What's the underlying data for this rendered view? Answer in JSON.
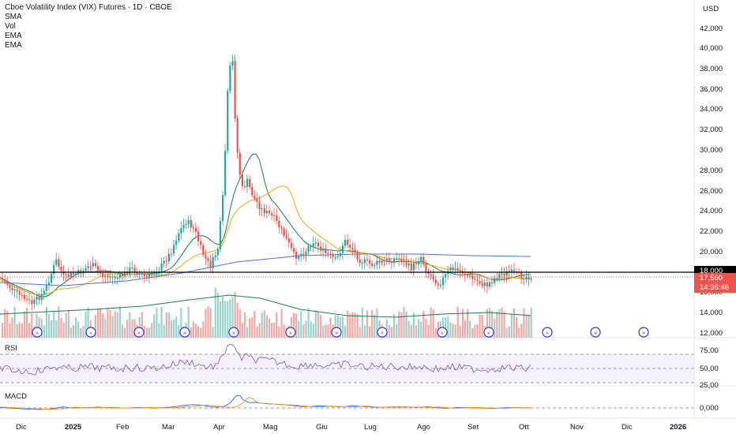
{
  "header": {
    "title": "Cboe Volatility Index (VIX) Futures · 1D · CBOE",
    "indicators": [
      "SMA",
      "Vol",
      "EMA",
      "EMA"
    ]
  },
  "price_axis": {
    "currency": "USD",
    "ticks": [
      "42,000",
      "40,000",
      "38,000",
      "36,000",
      "34,000",
      "32,000",
      "30,000",
      "28,000",
      "26,000",
      "24,000",
      "22,000",
      "20,000",
      "16,000",
      "14,000",
      "12,000"
    ],
    "level_label": "18,000",
    "last_price": "17,560",
    "countdown": "14:36:46"
  },
  "rsi_pane": {
    "label": "RSI",
    "ticks": [
      "75,00",
      "50,00",
      "25,00"
    ]
  },
  "macd_pane": {
    "label": "MACD",
    "ticks": [
      "0,000"
    ]
  },
  "time_axis": {
    "labels": [
      "Dic",
      "2025",
      "Feb",
      "Mar",
      "Apr",
      "Mag",
      "Giu",
      "Lug",
      "Ago",
      "Set",
      "Ott",
      "Nov",
      "Dic",
      "2026"
    ]
  },
  "colors": {
    "up": "#26a69a",
    "down": "#ef5350",
    "sma_short": "#f2a900",
    "ema_green": "#1b7d4f",
    "ma_blue": "#4d6fe0",
    "rsi_line": "#7e57c2",
    "macd_line": "#2962ff",
    "signal_line": "#ff9800",
    "level_line": "#000000"
  },
  "events": {
    "icon": "dividend-event-icon",
    "count": 13
  }
}
